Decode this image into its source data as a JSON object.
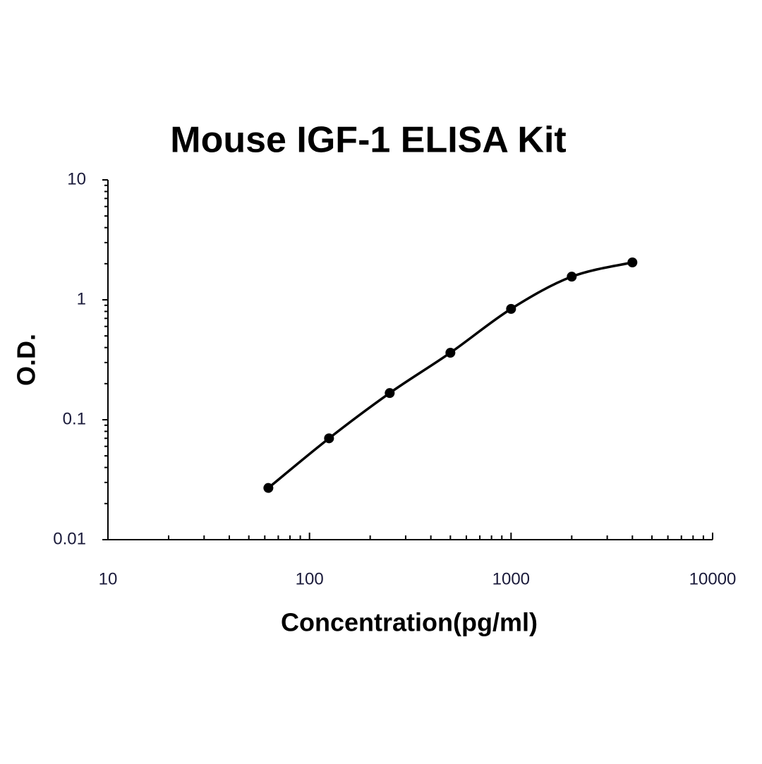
{
  "chart_data": {
    "type": "line",
    "title": "Mouse IGF-1 ELISA Kit",
    "x_label": "Concentration(pg/ml)",
    "y_label": "O.D.",
    "x": [
      62.5,
      125,
      250,
      500,
      1000,
      2000,
      4000
    ],
    "values": [
      0.027,
      0.07,
      0.167,
      0.362,
      0.84,
      1.56,
      2.05
    ],
    "color": "#000000",
    "x_log": true,
    "y_log": true,
    "xlim": [
      10,
      10000
    ],
    "xticks": [
      10,
      100,
      1000,
      10000
    ],
    "ylim": [
      0.01,
      10
    ],
    "yticks": [
      0.01,
      0.1,
      1,
      10
    ]
  }
}
